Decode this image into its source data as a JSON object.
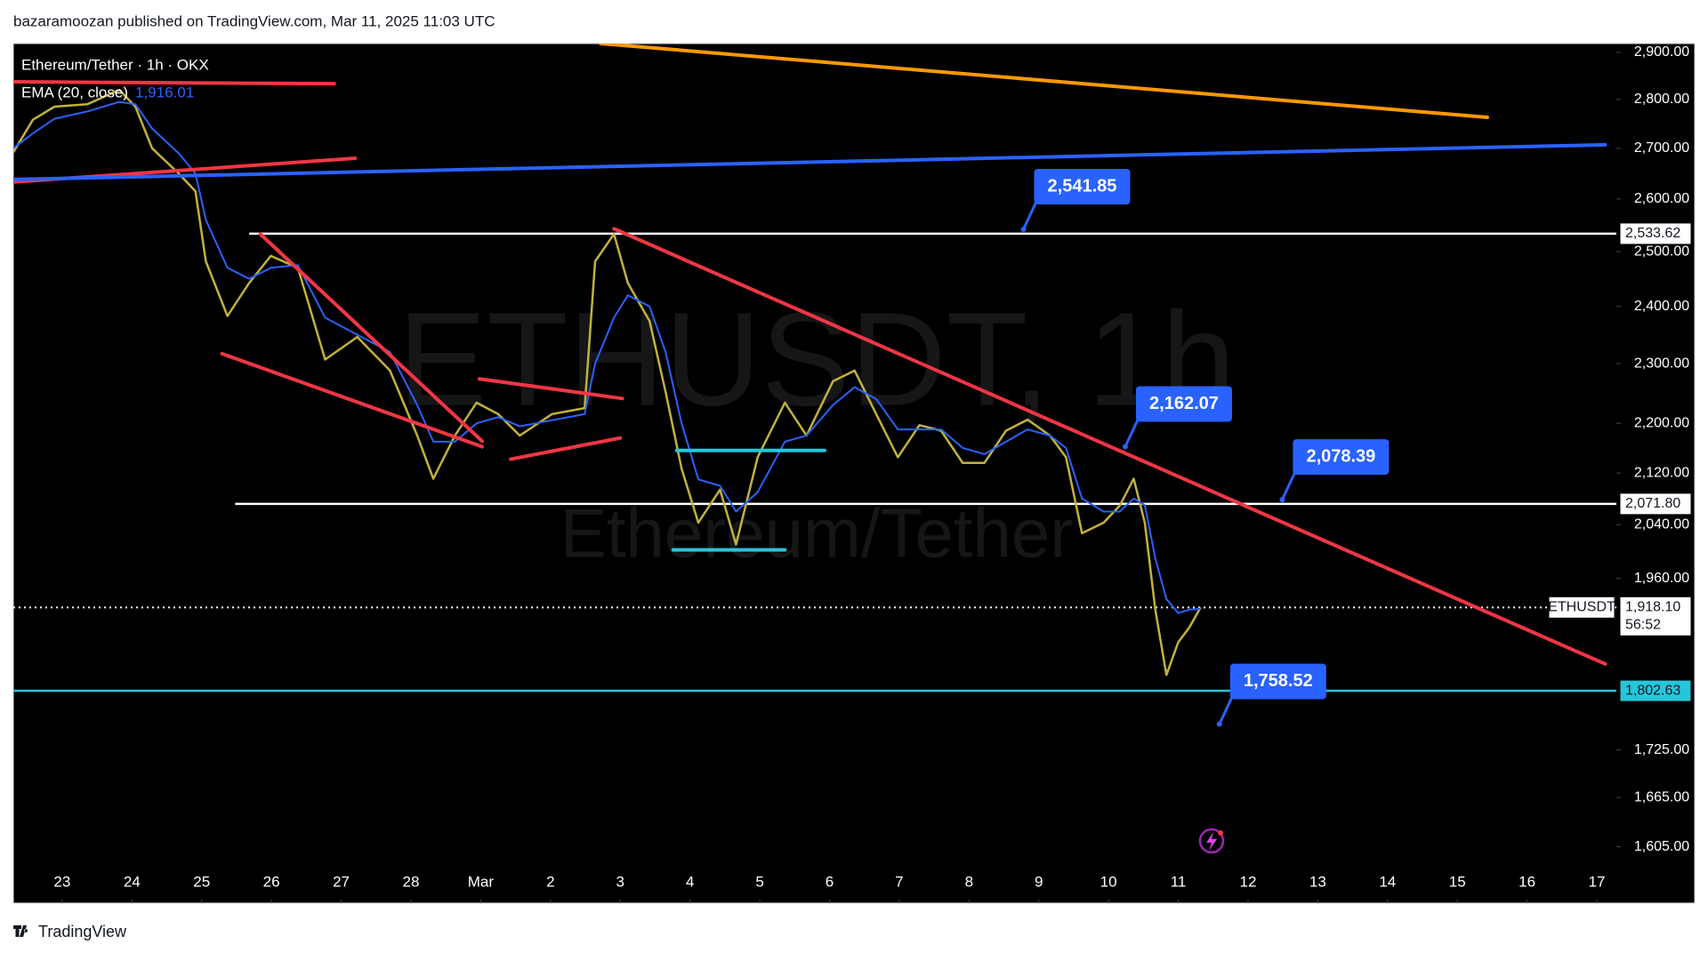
{
  "header": {
    "publisher": "bazaramoozan published on TradingView.com, Mar 11, 2025 11:03 UTC"
  },
  "footer": {
    "brand": "TradingView"
  },
  "chart_data": {
    "type": "line",
    "title": "Ethereum/Tether · 1h · OKX",
    "watermark": [
      "ETHUSDT, 1h",
      "Ethereum/Tether"
    ],
    "legend_value": "1,916.01",
    "log_scale": true,
    "xlim": [
      -0.7,
      22.28
    ],
    "ylim": [
      1539,
      2919
    ],
    "xticks": [
      {
        "value": 0,
        "label": "23"
      },
      {
        "value": 1,
        "label": "24"
      },
      {
        "value": 2,
        "label": "25"
      },
      {
        "value": 3,
        "label": "26"
      },
      {
        "value": 4,
        "label": "27"
      },
      {
        "value": 5,
        "label": "28"
      },
      {
        "value": 6,
        "label": "Mar"
      },
      {
        "value": 7,
        "label": "2"
      },
      {
        "value": 8,
        "label": "3"
      },
      {
        "value": 9,
        "label": "4"
      },
      {
        "value": 10,
        "label": "5"
      },
      {
        "value": 11,
        "label": "6"
      },
      {
        "value": 12,
        "label": "7"
      },
      {
        "value": 13,
        "label": "8"
      },
      {
        "value": 14,
        "label": "9"
      },
      {
        "value": 15,
        "label": "10"
      },
      {
        "value": 16,
        "label": "11"
      },
      {
        "value": 17,
        "label": "12"
      },
      {
        "value": 18,
        "label": "13"
      },
      {
        "value": 19,
        "label": "14"
      },
      {
        "value": 20,
        "label": "15"
      },
      {
        "value": 21,
        "label": "16"
      },
      {
        "value": 22,
        "label": "17"
      }
    ],
    "yticks": [
      {
        "value": 1605,
        "label": "1,605.00"
      },
      {
        "value": 1665,
        "label": "1,665.00"
      },
      {
        "value": 1725,
        "label": "1,725.00"
      },
      {
        "value": 1960,
        "label": "1,960.00"
      },
      {
        "value": 2040,
        "label": "2,040.00"
      },
      {
        "value": 2120,
        "label": "2,120.00"
      },
      {
        "value": 2200,
        "label": "2,200.00"
      },
      {
        "value": 2300,
        "label": "2,300.00"
      },
      {
        "value": 2400,
        "label": "2,400.00"
      },
      {
        "value": 2500,
        "label": "2,500.00"
      },
      {
        "value": 2600,
        "label": "2,600.00"
      },
      {
        "value": 2700,
        "label": "2,700.00"
      },
      {
        "value": 2800,
        "label": "2,800.00"
      },
      {
        "value": 2900,
        "label": "2,900.00"
      }
    ],
    "x": [
      -0.7,
      -0.42,
      -0.11,
      0.36,
      0.82,
      1.05,
      1.29,
      1.67,
      1.91,
      2.06,
      2.37,
      2.68,
      2.99,
      3.38,
      3.77,
      4.23,
      4.7,
      5.09,
      5.32,
      5.63,
      5.94,
      6.25,
      6.56,
      7.02,
      7.49,
      7.64,
      7.91,
      8.11,
      8.42,
      8.65,
      8.88,
      9.12,
      9.43,
      9.66,
      9.97,
      10.36,
      10.67,
      11.05,
      11.36,
      11.67,
      11.98,
      12.29,
      12.6,
      12.91,
      13.22,
      13.53,
      13.84,
      14.16,
      14.39,
      14.62,
      14.93,
      15.16,
      15.36,
      15.52,
      15.67,
      15.83,
      16.0,
      16.16,
      16.32
    ],
    "series": [
      {
        "color": "#c2b23a",
        "values": [
          2692,
          2758,
          2785,
          2790,
          2820,
          2785,
          2700,
          2650,
          2615,
          2482,
          2383,
          2442,
          2492,
          2470,
          2307,
          2346,
          2288,
          2180,
          2111,
          2180,
          2234,
          2215,
          2180,
          2215,
          2225,
          2482,
          2533,
          2442,
          2374,
          2252,
          2127,
          2043,
          2094,
          2010,
          2145,
          2234,
          2180,
          2270,
          2288,
          2215,
          2145,
          2197,
          2188,
          2136,
          2136,
          2188,
          2206,
          2180,
          2145,
          2027,
          2043,
          2069,
          2111,
          2043,
          1915,
          1824,
          1869,
          1890,
          1918
        ]
      },
      {
        "name": "EMA (20, close)",
        "color": "#2962ff",
        "values": [
          2700,
          2730,
          2760,
          2775,
          2795,
          2790,
          2740,
          2690,
          2650,
          2560,
          2470,
          2450,
          2470,
          2475,
          2380,
          2350,
          2320,
          2230,
          2170,
          2170,
          2200,
          2210,
          2195,
          2205,
          2215,
          2300,
          2380,
          2420,
          2400,
          2320,
          2200,
          2110,
          2100,
          2060,
          2090,
          2170,
          2180,
          2230,
          2260,
          2240,
          2190,
          2190,
          2190,
          2160,
          2150,
          2170,
          2190,
          2180,
          2160,
          2080,
          2060,
          2060,
          2080,
          2070,
          1990,
          1930,
          1910,
          1915,
          1916
        ]
      }
    ],
    "drawings": [
      {
        "color": "#f23645",
        "x": [
          -0.7,
          3.9
        ],
        "y": [
          2837,
          2833
        ]
      },
      {
        "color": "#f23645",
        "x": [
          -0.7,
          4.2
        ],
        "y": [
          2633,
          2680
        ]
      },
      {
        "color": "#ff9800",
        "x": [
          7.72,
          20.43
        ],
        "y": [
          2919,
          2763
        ]
      },
      {
        "color": "#2962ff",
        "x": [
          -0.7,
          22.12
        ],
        "y": [
          2638,
          2707
        ]
      },
      {
        "color": "#f23645",
        "x": [
          2.29,
          6.02
        ],
        "y": [
          2317,
          2162
        ]
      },
      {
        "color": "#f23645",
        "x": [
          2.84,
          6.02
        ],
        "y": [
          2533,
          2171
        ]
      },
      {
        "color": "#f23645",
        "x": [
          5.98,
          8.03
        ],
        "y": [
          2274,
          2241
        ]
      },
      {
        "color": "#f23645",
        "x": [
          6.43,
          8.0
        ],
        "y": [
          2142,
          2176
        ]
      },
      {
        "color": "#f23645",
        "x": [
          7.91,
          22.12
        ],
        "y": [
          2543,
          1839
        ]
      },
      {
        "color": "#26c6da",
        "x": [
          8.81,
          10.93
        ],
        "y": [
          2156,
          2156
        ]
      },
      {
        "color": "#26c6da",
        "x": [
          8.76,
          10.36
        ],
        "y": [
          2002,
          2002
        ]
      }
    ],
    "levels": [
      {
        "value": 2533.62,
        "label": "2,533.62",
        "color": "#ffffff",
        "x": 2.68
      },
      {
        "value": 2071.8,
        "label": "2,071.80",
        "color": "#ffffff",
        "x": 2.48
      },
      {
        "value": 1802.63,
        "label": "1,802.63",
        "color": "#26c6da"
      },
      {
        "value": 1918.1,
        "label": "1,918.10",
        "color": "#ffffff",
        "line_style": "dotted",
        "name": "ETHUSDT",
        "countdown": "56:52"
      }
    ],
    "callouts": [
      {
        "value": 2541.85,
        "label": "2,541.85",
        "x": 13.78
      },
      {
        "value": 2162.07,
        "label": "2,162.07",
        "x": 15.24
      },
      {
        "value": 2078.39,
        "label": "2,078.39",
        "x": 17.49
      },
      {
        "value": 1758.52,
        "label": "1,758.52",
        "x": 16.59
      }
    ]
  }
}
